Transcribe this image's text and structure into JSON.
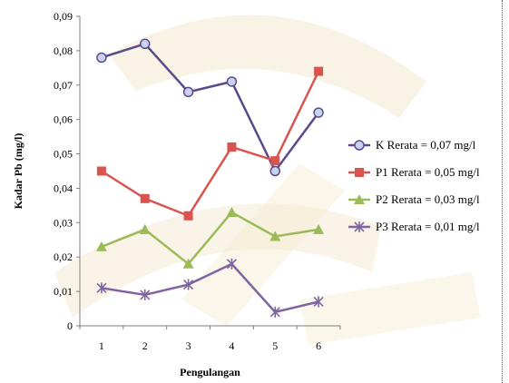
{
  "chart_data": {
    "type": "line",
    "x": [
      1,
      2,
      3,
      4,
      5,
      6
    ],
    "xlabel": "Pengulangan",
    "ylabel": "Kadar Pb (mg/l)",
    "ylim": [
      0,
      0.09
    ],
    "yticks": [
      0,
      0.01,
      0.02,
      0.03,
      0.04,
      0.05,
      0.06,
      0.07,
      0.08,
      0.09
    ],
    "ytick_labels": [
      "0",
      "0,01",
      "0,02",
      "0,03",
      "0,04",
      "0,05",
      "0,06",
      "0,07",
      "0,08",
      "0,09"
    ],
    "xtick_labels": [
      "1",
      "2",
      "3",
      "4",
      "5",
      "6"
    ],
    "legend_position": "right",
    "grid": false,
    "series": [
      {
        "name": "K Rerata  = 0,07 mg/l",
        "marker": "circle",
        "color": "#5b4a8a",
        "values": [
          0.078,
          0.082,
          0.068,
          0.071,
          0.045,
          0.062
        ]
      },
      {
        "name": "P1 Rerata = 0,05 mg/l",
        "marker": "square",
        "color": "#d9534f",
        "values": [
          0.045,
          0.037,
          0.032,
          0.052,
          0.048,
          0.074
        ]
      },
      {
        "name": "P2 Rerata = 0,03 mg/l",
        "marker": "triangle",
        "color": "#9bbb59",
        "values": [
          0.023,
          0.028,
          0.018,
          0.033,
          0.026,
          0.028
        ]
      },
      {
        "name": "P3 Rerata = 0,01 mg/l",
        "marker": "star",
        "color": "#8064a2",
        "values": [
          0.011,
          0.009,
          0.012,
          0.018,
          0.004,
          0.007
        ]
      }
    ]
  }
}
